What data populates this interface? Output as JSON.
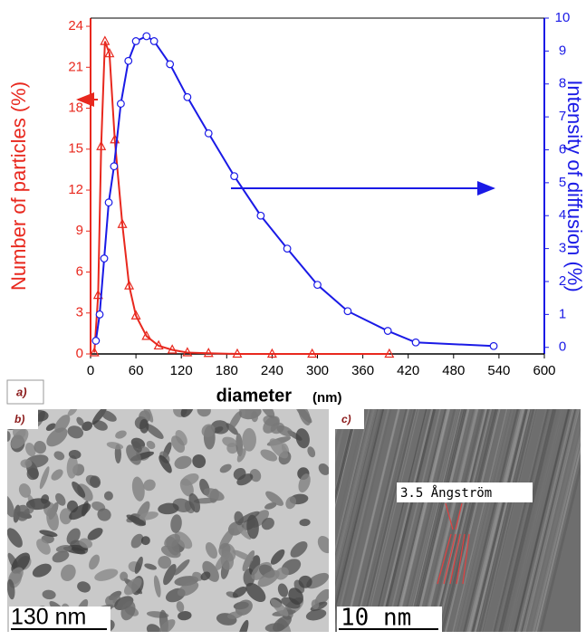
{
  "chart_data": {
    "type": "line",
    "xlabel": "diameter",
    "xlabel_unit": "(nm)",
    "ylabel": "Number of particles (%)",
    "y2label": "Intensity of diffusion (%)",
    "xlim": [
      0,
      600
    ],
    "xticks": [
      0,
      60,
      120,
      180,
      240,
      300,
      360,
      420,
      480,
      540,
      600
    ],
    "ylim": [
      0,
      24.6
    ],
    "yticks": [
      0,
      3,
      6,
      9,
      12,
      15,
      18,
      21,
      24
    ],
    "y2lim": [
      -0.2,
      10
    ],
    "y2ticks": [
      0,
      1,
      2,
      3,
      4,
      5,
      6,
      7,
      8,
      9,
      10
    ],
    "series": [
      {
        "name": "Number of particles",
        "color": "#e8281e",
        "marker": "triangle",
        "x": [
          5,
          10,
          14,
          19,
          25,
          32,
          42,
          51,
          60,
          74,
          90,
          108,
          128,
          156,
          194,
          240,
          293,
          395
        ],
        "values": [
          0.1,
          4.3,
          15.2,
          22.9,
          22,
          15.7,
          9.5,
          5,
          2.8,
          1.3,
          0.6,
          0.3,
          0.1,
          0.05,
          0,
          0,
          0,
          0
        ]
      },
      {
        "name": "Intensity of diffusion",
        "color": "#1a1ae6",
        "marker": "circle",
        "axis": "y2",
        "x": [
          7,
          12,
          18,
          24,
          31,
          40,
          50,
          60,
          74,
          84,
          105,
          128,
          156,
          190,
          225,
          260,
          300,
          340,
          393,
          430,
          533
        ],
        "values": [
          0.2,
          1.0,
          2.7,
          4.4,
          5.5,
          7.4,
          8.7,
          9.3,
          9.45,
          9.3,
          8.6,
          7.6,
          6.5,
          5.2,
          4.0,
          3.0,
          1.9,
          1.1,
          0.5,
          0.15,
          0.04
        ]
      }
    ]
  },
  "panels": {
    "a": "a)",
    "b": {
      "label": "b)",
      "scale": "130 nm"
    },
    "c": {
      "label": "c)",
      "scale": "10 nm",
      "annotation": "3.5 Ångström"
    }
  }
}
